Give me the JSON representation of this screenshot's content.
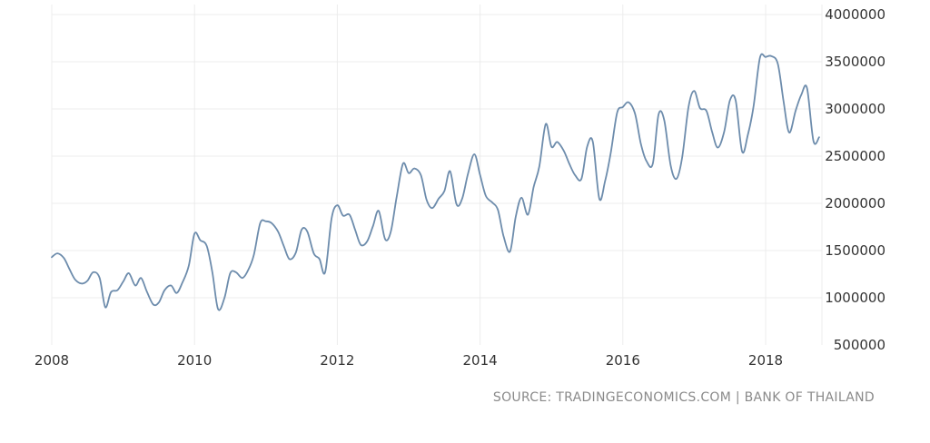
{
  "chart_data": {
    "type": "line",
    "title": "",
    "xlabel": "",
    "ylabel": "",
    "xlim": [
      2008.0,
      2018.83
    ],
    "ylim": [
      500000,
      4000000
    ],
    "grid": true,
    "x_ticks": [
      "2008",
      "2010",
      "2012",
      "2014",
      "2016",
      "2018"
    ],
    "y_ticks": [
      "500000",
      "1000000",
      "1500000",
      "2000000",
      "2500000",
      "3000000",
      "3500000",
      "4000000"
    ],
    "color": "#6d8cac",
    "series": [
      {
        "name": "",
        "points": [
          [
            2008.0,
            1430000
          ],
          [
            2008.08,
            1470000
          ],
          [
            2008.17,
            1420000
          ],
          [
            2008.25,
            1300000
          ],
          [
            2008.33,
            1190000
          ],
          [
            2008.42,
            1150000
          ],
          [
            2008.5,
            1180000
          ],
          [
            2008.58,
            1270000
          ],
          [
            2008.67,
            1210000
          ],
          [
            2008.75,
            900000
          ],
          [
            2008.83,
            1060000
          ],
          [
            2008.92,
            1080000
          ],
          [
            2009.0,
            1170000
          ],
          [
            2009.08,
            1260000
          ],
          [
            2009.17,
            1130000
          ],
          [
            2009.25,
            1210000
          ],
          [
            2009.33,
            1070000
          ],
          [
            2009.42,
            930000
          ],
          [
            2009.5,
            950000
          ],
          [
            2009.58,
            1080000
          ],
          [
            2009.67,
            1130000
          ],
          [
            2009.75,
            1050000
          ],
          [
            2009.83,
            1160000
          ],
          [
            2009.92,
            1340000
          ],
          [
            2010.0,
            1680000
          ],
          [
            2010.08,
            1610000
          ],
          [
            2010.17,
            1550000
          ],
          [
            2010.25,
            1270000
          ],
          [
            2010.33,
            880000
          ],
          [
            2010.42,
            1000000
          ],
          [
            2010.5,
            1260000
          ],
          [
            2010.58,
            1270000
          ],
          [
            2010.67,
            1210000
          ],
          [
            2010.75,
            1290000
          ],
          [
            2010.83,
            1450000
          ],
          [
            2010.92,
            1790000
          ],
          [
            2011.0,
            1810000
          ],
          [
            2011.08,
            1790000
          ],
          [
            2011.17,
            1700000
          ],
          [
            2011.25,
            1550000
          ],
          [
            2011.33,
            1410000
          ],
          [
            2011.42,
            1480000
          ],
          [
            2011.5,
            1720000
          ],
          [
            2011.58,
            1700000
          ],
          [
            2011.67,
            1470000
          ],
          [
            2011.75,
            1410000
          ],
          [
            2011.83,
            1270000
          ],
          [
            2011.92,
            1840000
          ],
          [
            2012.0,
            1980000
          ],
          [
            2012.08,
            1870000
          ],
          [
            2012.17,
            1880000
          ],
          [
            2012.25,
            1720000
          ],
          [
            2012.33,
            1560000
          ],
          [
            2012.42,
            1600000
          ],
          [
            2012.5,
            1760000
          ],
          [
            2012.58,
            1920000
          ],
          [
            2012.67,
            1620000
          ],
          [
            2012.75,
            1700000
          ],
          [
            2012.83,
            2060000
          ],
          [
            2012.92,
            2420000
          ],
          [
            2013.0,
            2320000
          ],
          [
            2013.08,
            2370000
          ],
          [
            2013.17,
            2300000
          ],
          [
            2013.25,
            2040000
          ],
          [
            2013.33,
            1950000
          ],
          [
            2013.42,
            2050000
          ],
          [
            2013.5,
            2130000
          ],
          [
            2013.58,
            2340000
          ],
          [
            2013.67,
            1990000
          ],
          [
            2013.75,
            2050000
          ],
          [
            2013.83,
            2310000
          ],
          [
            2013.92,
            2520000
          ],
          [
            2014.0,
            2300000
          ],
          [
            2014.08,
            2080000
          ],
          [
            2014.17,
            2010000
          ],
          [
            2014.25,
            1930000
          ],
          [
            2014.33,
            1650000
          ],
          [
            2014.42,
            1490000
          ],
          [
            2014.5,
            1860000
          ],
          [
            2014.58,
            2060000
          ],
          [
            2014.67,
            1880000
          ],
          [
            2014.75,
            2170000
          ],
          [
            2014.83,
            2390000
          ],
          [
            2014.92,
            2840000
          ],
          [
            2015.0,
            2600000
          ],
          [
            2015.08,
            2650000
          ],
          [
            2015.17,
            2560000
          ],
          [
            2015.25,
            2420000
          ],
          [
            2015.33,
            2300000
          ],
          [
            2015.42,
            2260000
          ],
          [
            2015.5,
            2600000
          ],
          [
            2015.58,
            2650000
          ],
          [
            2015.67,
            2050000
          ],
          [
            2015.75,
            2230000
          ],
          [
            2015.83,
            2530000
          ],
          [
            2015.92,
            2960000
          ],
          [
            2016.0,
            3020000
          ],
          [
            2016.08,
            3070000
          ],
          [
            2016.17,
            2950000
          ],
          [
            2016.25,
            2640000
          ],
          [
            2016.33,
            2450000
          ],
          [
            2016.42,
            2420000
          ],
          [
            2016.5,
            2940000
          ],
          [
            2016.58,
            2880000
          ],
          [
            2016.67,
            2400000
          ],
          [
            2016.75,
            2260000
          ],
          [
            2016.83,
            2480000
          ],
          [
            2016.92,
            3020000
          ],
          [
            2017.0,
            3190000
          ],
          [
            2017.08,
            3010000
          ],
          [
            2017.17,
            2980000
          ],
          [
            2017.25,
            2760000
          ],
          [
            2017.33,
            2590000
          ],
          [
            2017.42,
            2760000
          ],
          [
            2017.5,
            3090000
          ],
          [
            2017.58,
            3090000
          ],
          [
            2017.67,
            2550000
          ],
          [
            2017.75,
            2720000
          ],
          [
            2017.83,
            3020000
          ],
          [
            2017.92,
            3540000
          ],
          [
            2018.0,
            3550000
          ],
          [
            2018.08,
            3560000
          ],
          [
            2018.17,
            3480000
          ],
          [
            2018.25,
            3090000
          ],
          [
            2018.33,
            2750000
          ],
          [
            2018.42,
            2980000
          ],
          [
            2018.5,
            3150000
          ],
          [
            2018.58,
            3220000
          ],
          [
            2018.67,
            2660000
          ],
          [
            2018.75,
            2700000
          ]
        ]
      }
    ]
  },
  "source": "SOURCE: TRADINGECONOMICS.COM | BANK OF THAILAND"
}
